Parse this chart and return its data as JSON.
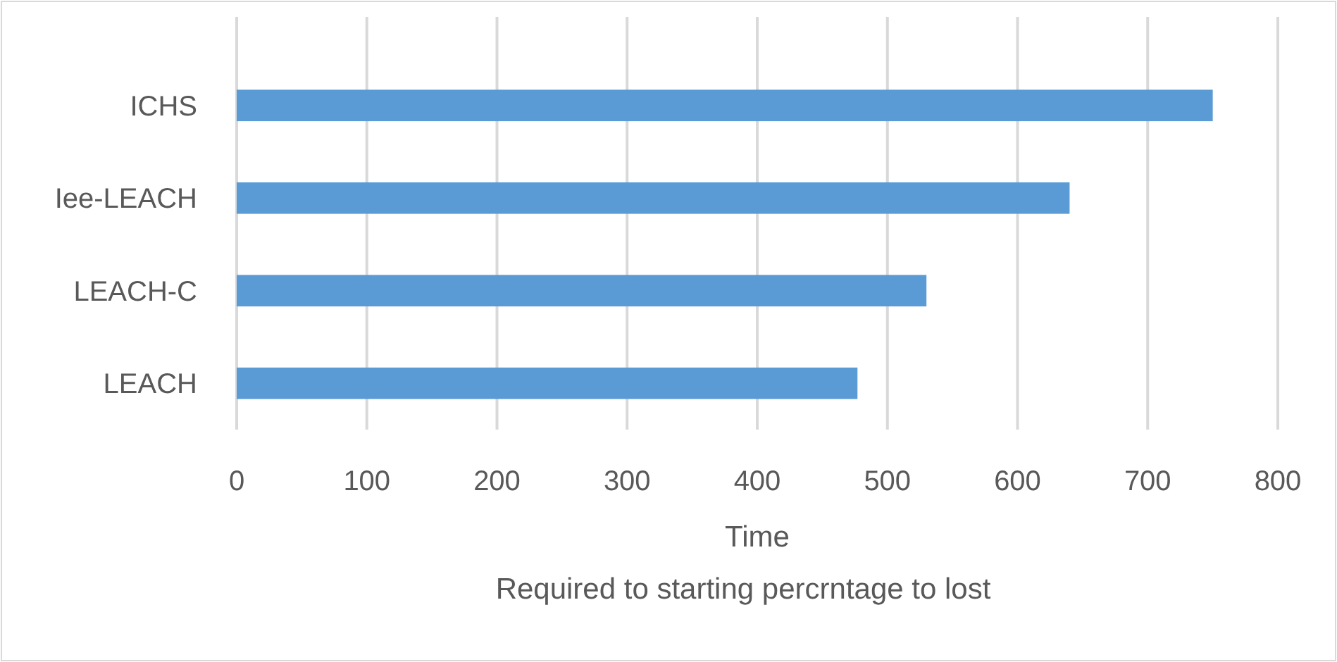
{
  "chart_data": {
    "type": "bar",
    "orientation": "horizontal",
    "categories": [
      "ICHS",
      "Iee-LEACH",
      "LEACH-C",
      "LEACH"
    ],
    "values": [
      750,
      640,
      530,
      477
    ],
    "color": "#5b9bd5",
    "xlim": [
      0,
      800
    ],
    "xticks": [
      0,
      100,
      200,
      300,
      400,
      500,
      600,
      700,
      800
    ],
    "grid": "x",
    "xlabel": "Time",
    "annotations": [
      "Required to starting percrntage to lost"
    ]
  }
}
